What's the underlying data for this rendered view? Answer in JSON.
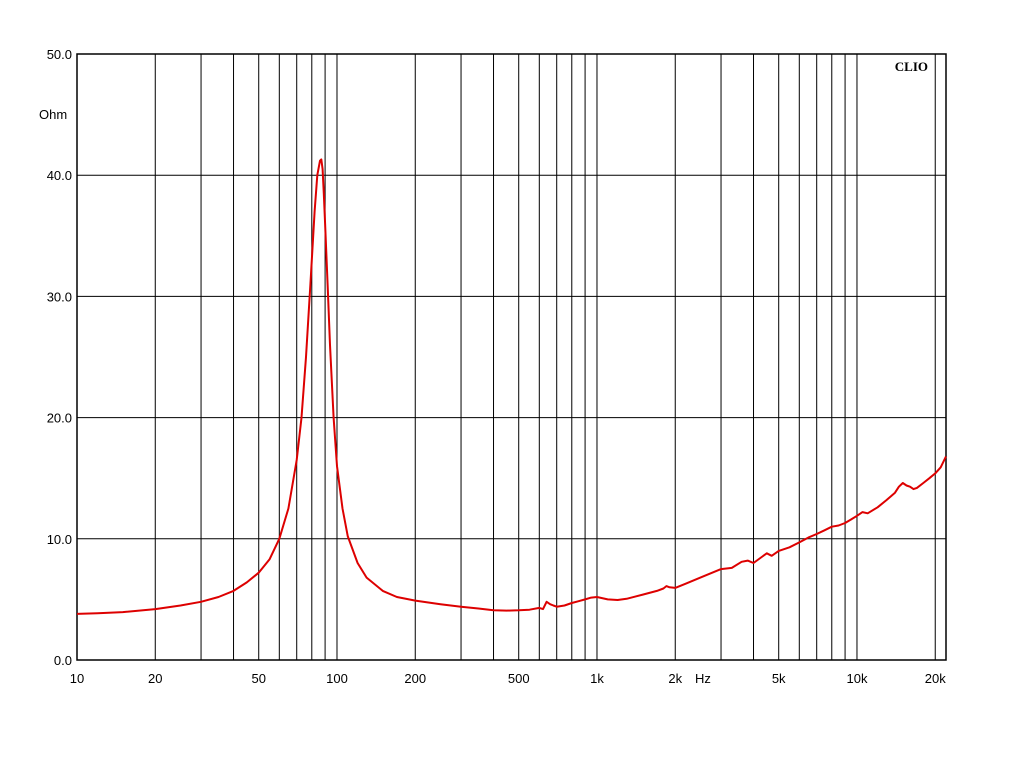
{
  "brand_label": "CLIO",
  "chart_data": {
    "type": "line",
    "title": "",
    "xlabel": "Hz",
    "ylabel": "Ohm",
    "x_scale": "log",
    "xlim": [
      10,
      22000
    ],
    "ylim": [
      0,
      50
    ],
    "grid": true,
    "x_ticks": [
      {
        "value": 10,
        "label": "10"
      },
      {
        "value": 20,
        "label": "20"
      },
      {
        "value": 50,
        "label": "50"
      },
      {
        "value": 100,
        "label": "100"
      },
      {
        "value": 200,
        "label": "200"
      },
      {
        "value": 500,
        "label": "500"
      },
      {
        "value": 1000,
        "label": "1k"
      },
      {
        "value": 2000,
        "label": "2k"
      },
      {
        "value": 5000,
        "label": "5k"
      },
      {
        "value": 10000,
        "label": "10k"
      },
      {
        "value": 20000,
        "label": "20k"
      }
    ],
    "y_ticks": [
      {
        "value": 0,
        "label": "0.0"
      },
      {
        "value": 10,
        "label": "10.0"
      },
      {
        "value": 20,
        "label": "20.0"
      },
      {
        "value": 30,
        "label": "30.0"
      },
      {
        "value": 40,
        "label": "40.0"
      },
      {
        "value": 50,
        "label": "50.0"
      }
    ],
    "x_gridlines": [
      20,
      30,
      40,
      50,
      60,
      70,
      80,
      90,
      100,
      200,
      300,
      400,
      500,
      600,
      700,
      800,
      900,
      1000,
      2000,
      3000,
      4000,
      5000,
      6000,
      7000,
      8000,
      9000,
      10000,
      20000
    ],
    "y_gridlines": [
      10,
      20,
      30,
      40
    ],
    "series": [
      {
        "color": "#dd0000",
        "x": [
          10,
          12,
          15,
          20,
          25,
          30,
          35,
          40,
          45,
          50,
          55,
          60,
          65,
          70,
          73,
          76,
          79,
          82,
          84,
          86,
          87,
          88,
          89,
          90,
          92,
          94,
          97,
          100,
          105,
          110,
          120,
          130,
          150,
          170,
          200,
          250,
          300,
          350,
          400,
          450,
          500,
          550,
          600,
          620,
          640,
          660,
          680,
          700,
          750,
          800,
          850,
          900,
          950,
          1000,
          1100,
          1200,
          1300,
          1500,
          1700,
          1800,
          1850,
          1900,
          2000,
          2200,
          2500,
          3000,
          3300,
          3600,
          3800,
          4000,
          4300,
          4500,
          4700,
          5000,
          5500,
          6000,
          6500,
          7000,
          7500,
          8000,
          8500,
          9000,
          9500,
          10000,
          10500,
          11000,
          12000,
          13000,
          14000,
          14500,
          15000,
          15500,
          16000,
          16500,
          17000,
          18000,
          19000,
          20000,
          21000,
          22000
        ],
        "y": [
          3.8,
          3.85,
          3.95,
          4.2,
          4.5,
          4.8,
          5.2,
          5.7,
          6.4,
          7.2,
          8.3,
          10.0,
          12.5,
          16.5,
          20.0,
          25.0,
          31.0,
          37.0,
          40.0,
          41.2,
          41.3,
          40.5,
          38.5,
          36.0,
          31.0,
          26.0,
          20.0,
          16.0,
          12.5,
          10.2,
          8.0,
          6.8,
          5.7,
          5.2,
          4.9,
          4.6,
          4.4,
          4.25,
          4.1,
          4.08,
          4.1,
          4.15,
          4.3,
          4.2,
          4.8,
          4.6,
          4.5,
          4.4,
          4.5,
          4.7,
          4.85,
          5.0,
          5.15,
          5.2,
          5.0,
          4.95,
          5.05,
          5.4,
          5.7,
          5.9,
          6.1,
          6.0,
          5.95,
          6.3,
          6.8,
          7.5,
          7.6,
          8.1,
          8.2,
          8.0,
          8.5,
          8.8,
          8.6,
          9.0,
          9.3,
          9.7,
          10.1,
          10.4,
          10.7,
          11.0,
          11.1,
          11.3,
          11.6,
          11.9,
          12.2,
          12.1,
          12.6,
          13.2,
          13.8,
          14.3,
          14.6,
          14.4,
          14.3,
          14.1,
          14.2,
          14.6,
          15.0,
          15.4,
          15.9,
          16.8
        ]
      }
    ]
  }
}
